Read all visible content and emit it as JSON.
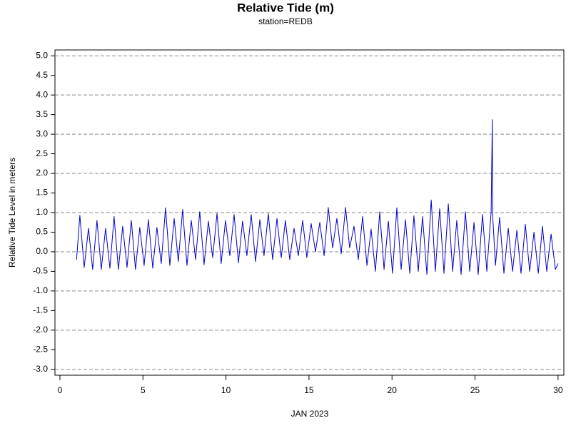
{
  "chart_data": {
    "type": "line",
    "title": "Relative Tide (m)",
    "subtitle": "station=REDB",
    "xlabel": "JAN 2023",
    "ylabel": "Relative Tide Level in meters",
    "xlim": [
      -0.3,
      30.35
    ],
    "ylim": [
      -3.15,
      5.15
    ],
    "xticks": [
      0,
      5,
      10,
      15,
      20,
      25,
      30
    ],
    "yticks": [
      {
        "value": -3,
        "label": "-3.0"
      },
      -2.5,
      {
        "value": -2,
        "label": "-2.0"
      },
      -1.5,
      {
        "value": -1,
        "label": "-1.0"
      },
      -0.5,
      {
        "value": 0,
        "label": "0.0"
      },
      0.5,
      {
        "value": 1,
        "label": "1.0"
      },
      1.5,
      {
        "value": 2,
        "label": "2.0"
      },
      2.5,
      {
        "value": 3,
        "label": "3.0"
      },
      3.5,
      {
        "value": 4,
        "label": "4.0"
      },
      4.5,
      {
        "value": 5,
        "label": "5.0"
      }
    ],
    "ygrid": [
      -3,
      -2,
      -1,
      0,
      1,
      2,
      3,
      4,
      5
    ],
    "series": [
      {
        "name": "Relative Tide",
        "color": "#0000cc",
        "x": [
          1.0,
          1.2,
          1.46,
          1.72,
          1.97,
          2.23,
          2.49,
          2.75,
          3.01,
          3.26,
          3.52,
          3.78,
          4.04,
          4.3,
          4.55,
          4.81,
          5.07,
          5.33,
          5.59,
          5.84,
          6.1,
          6.36,
          6.62,
          6.88,
          7.13,
          7.39,
          7.65,
          7.91,
          8.17,
          8.42,
          8.68,
          8.94,
          9.2,
          9.46,
          9.71,
          9.97,
          10.23,
          10.49,
          10.75,
          11.0,
          11.26,
          11.52,
          11.78,
          12.04,
          12.29,
          12.55,
          12.81,
          13.07,
          13.33,
          13.58,
          13.84,
          14.1,
          14.36,
          14.62,
          14.87,
          15.13,
          15.39,
          15.65,
          15.91,
          16.16,
          16.42,
          16.68,
          16.94,
          17.2,
          17.45,
          17.71,
          17.97,
          18.23,
          18.49,
          18.74,
          19.0,
          19.26,
          19.52,
          19.78,
          20.03,
          20.29,
          20.55,
          20.81,
          21.07,
          21.32,
          21.58,
          21.84,
          22.1,
          22.36,
          22.61,
          22.87,
          23.13,
          23.39,
          23.65,
          23.9,
          24.16,
          24.42,
          24.68,
          24.94,
          25.19,
          25.45,
          25.71,
          25.97,
          26.04,
          26.06,
          26.23,
          26.48,
          26.74,
          27.0,
          27.26,
          27.52,
          27.77,
          28.03,
          28.29,
          28.55,
          28.81,
          29.06,
          29.32,
          29.58,
          29.84,
          30.0
        ],
        "values": [
          -0.2,
          0.93,
          -0.4,
          0.6,
          -0.45,
          0.8,
          -0.45,
          0.6,
          -0.42,
          0.9,
          -0.45,
          0.65,
          -0.4,
          0.8,
          -0.45,
          0.62,
          -0.35,
          0.82,
          -0.42,
          0.62,
          -0.3,
          1.12,
          -0.35,
          0.85,
          -0.25,
          1.08,
          -0.35,
          0.8,
          -0.2,
          1.02,
          -0.33,
          0.78,
          -0.15,
          0.98,
          -0.3,
          0.8,
          -0.1,
          0.95,
          -0.28,
          0.78,
          -0.1,
          0.95,
          -0.25,
          0.82,
          -0.1,
          0.97,
          -0.2,
          0.85,
          -0.15,
          0.8,
          -0.2,
          0.6,
          -0.1,
          0.8,
          -0.15,
          0.72,
          0.0,
          0.75,
          -0.1,
          1.13,
          0.1,
          0.85,
          -0.05,
          1.13,
          0.1,
          0.65,
          -0.2,
          0.9,
          -0.35,
          0.58,
          -0.5,
          1.02,
          -0.45,
          0.78,
          -0.55,
          1.12,
          -0.45,
          0.82,
          -0.55,
          0.92,
          -0.5,
          0.9,
          -0.58,
          1.32,
          -0.5,
          1.1,
          -0.55,
          1.22,
          -0.5,
          0.8,
          -0.58,
          1.02,
          -0.5,
          0.75,
          -0.58,
          0.95,
          -0.5,
          1.02,
          3.37,
          0.95,
          -0.35,
          0.88,
          -0.55,
          0.6,
          -0.5,
          0.55,
          -0.55,
          0.7,
          -0.5,
          0.5,
          -0.55,
          0.65,
          -0.5,
          0.45,
          -0.45,
          -0.3
        ]
      }
    ]
  }
}
